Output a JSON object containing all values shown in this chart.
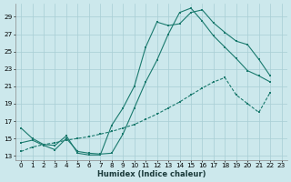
{
  "xlabel": "Humidex (Indice chaleur)",
  "bg_color": "#cce8ec",
  "grid_color": "#a8ced4",
  "line_color": "#1a7a6e",
  "xlim": [
    -0.5,
    23.5
  ],
  "ylim": [
    12.5,
    30.5
  ],
  "xticks": [
    0,
    1,
    2,
    3,
    4,
    5,
    6,
    7,
    8,
    9,
    10,
    11,
    12,
    13,
    14,
    15,
    16,
    17,
    18,
    19,
    20,
    21,
    22,
    23
  ],
  "yticks": [
    13,
    15,
    17,
    19,
    21,
    23,
    25,
    27,
    29
  ],
  "line1_x": [
    0,
    1,
    2,
    3,
    4,
    5,
    6,
    7,
    8,
    9,
    10,
    11,
    12,
    13,
    14,
    15,
    16,
    17,
    18,
    19,
    20,
    21,
    22
  ],
  "line1_y": [
    16.2,
    15.0,
    14.3,
    14.2,
    15.3,
    13.3,
    13.1,
    13.1,
    16.5,
    18.5,
    21.0,
    25.5,
    28.4,
    28.0,
    28.2,
    29.5,
    29.8,
    28.3,
    27.2,
    26.2,
    25.8,
    24.1,
    22.2
  ],
  "line2_x": [
    0,
    1,
    2,
    3,
    4,
    5,
    6,
    7,
    8,
    9,
    10,
    11,
    12,
    13,
    14,
    15,
    16,
    17,
    18,
    19,
    20,
    21,
    22
  ],
  "line2_y": [
    13.5,
    14.0,
    14.3,
    14.5,
    14.8,
    15.0,
    15.2,
    15.5,
    15.8,
    16.2,
    16.6,
    17.2,
    17.8,
    18.5,
    19.2,
    20.0,
    20.8,
    21.5,
    22.0,
    20.0,
    19.0,
    18.0,
    20.3
  ],
  "line3_x": [
    0,
    1,
    2,
    3,
    4,
    5,
    6,
    7,
    8,
    9,
    10,
    11,
    12,
    13,
    14,
    15,
    16,
    17,
    18,
    19,
    20,
    21,
    22
  ],
  "line3_y": [
    14.5,
    14.8,
    14.2,
    13.7,
    15.0,
    13.5,
    13.3,
    13.2,
    13.3,
    15.5,
    18.5,
    21.5,
    24.0,
    27.0,
    29.5,
    30.0,
    28.5,
    26.8,
    25.5,
    24.2,
    22.8,
    22.2,
    21.5
  ]
}
